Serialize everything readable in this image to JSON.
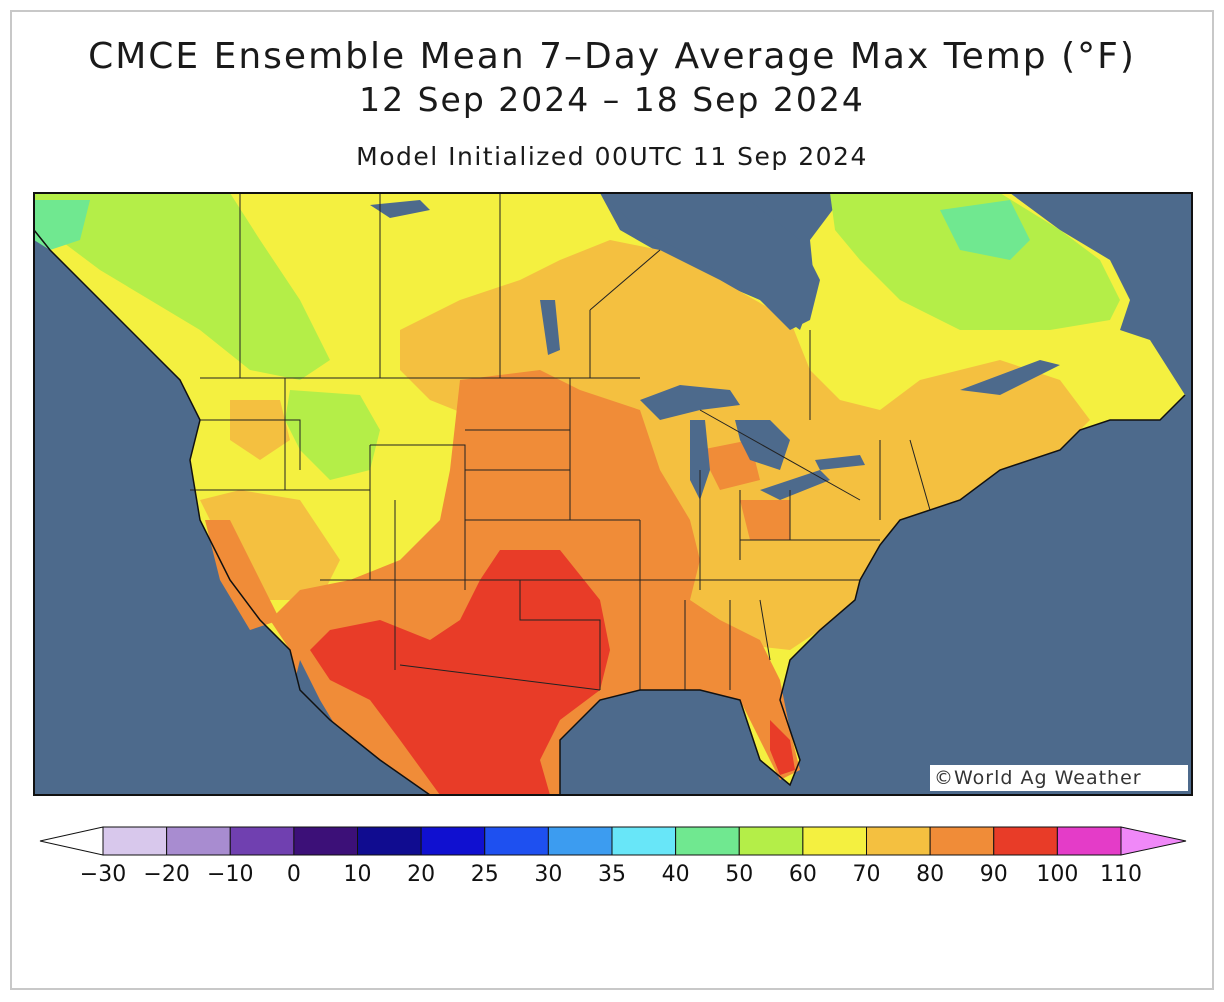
{
  "title": "CMCE Ensemble Mean 7–Day Average Max Temp (°F)",
  "date_range": "12 Sep 2024 – 18 Sep 2024",
  "model_init": "Model Initialized 00UTC 11 Sep 2024",
  "credit": "©World Ag Weather",
  "legend": {
    "labels": [
      "−30",
      "−20",
      "−10",
      "0",
      "10",
      "20",
      "25",
      "30",
      "35",
      "40",
      "50",
      "60",
      "70",
      "80",
      "90",
      "100",
      "110"
    ],
    "colors": [
      "#d8c8ec",
      "#a88cd0",
      "#7040b0",
      "#3c1078",
      "#100c90",
      "#1010d0",
      "#1e50f0",
      "#3c9cf0",
      "#68e6f8",
      "#70e890",
      "#b4ee48",
      "#f4f040",
      "#f4c040",
      "#f08c38",
      "#e83c28",
      "#e43cc8",
      "#f088f8"
    ],
    "under_color": "#ffffff",
    "over_color": "#f088f8"
  },
  "colors": {
    "ocean": "#4d6a8c",
    "lake": "#4d6a8c",
    "c60": "#f4f040",
    "c50": "#b4ee48",
    "c40": "#70e890",
    "c70": "#f4c040",
    "c80": "#f08c38",
    "c90": "#e83c28"
  }
}
